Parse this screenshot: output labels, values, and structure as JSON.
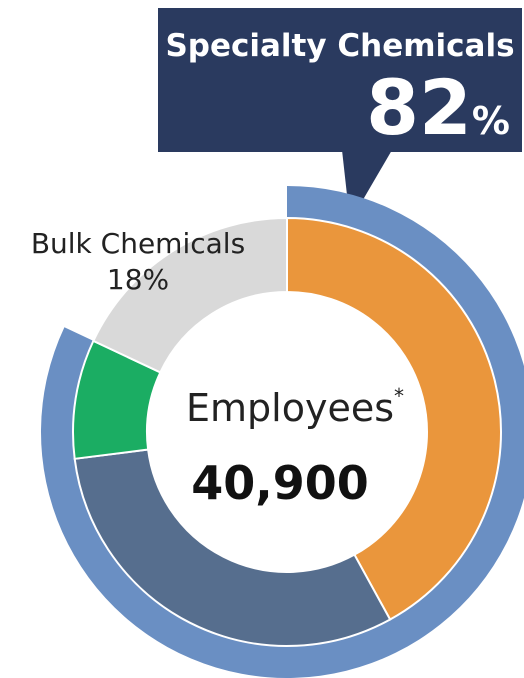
{
  "chart_data": {
    "type": "donut",
    "callout": {
      "label": "Specialty Chemicals",
      "value": "82",
      "unit": "%"
    },
    "bulk_label": {
      "name": "Bulk Chemicals",
      "value": "18%"
    },
    "center": {
      "title": "Employees",
      "footnote_mark": "*",
      "value": "40,900"
    },
    "inner_ring": [
      {
        "value": 42,
        "color": "#ea963c"
      },
      {
        "value": 31,
        "color": "#566e8e"
      },
      {
        "value": 9,
        "color": "#1bad63"
      },
      {
        "value": 18,
        "color": "#d9d9d9"
      }
    ],
    "outer_ring": [
      {
        "name": "Specialty Chemicals",
        "value": 82,
        "color": "#6a8fc3"
      }
    ],
    "colors": {
      "callout_bg": "#2a3a5f"
    }
  }
}
